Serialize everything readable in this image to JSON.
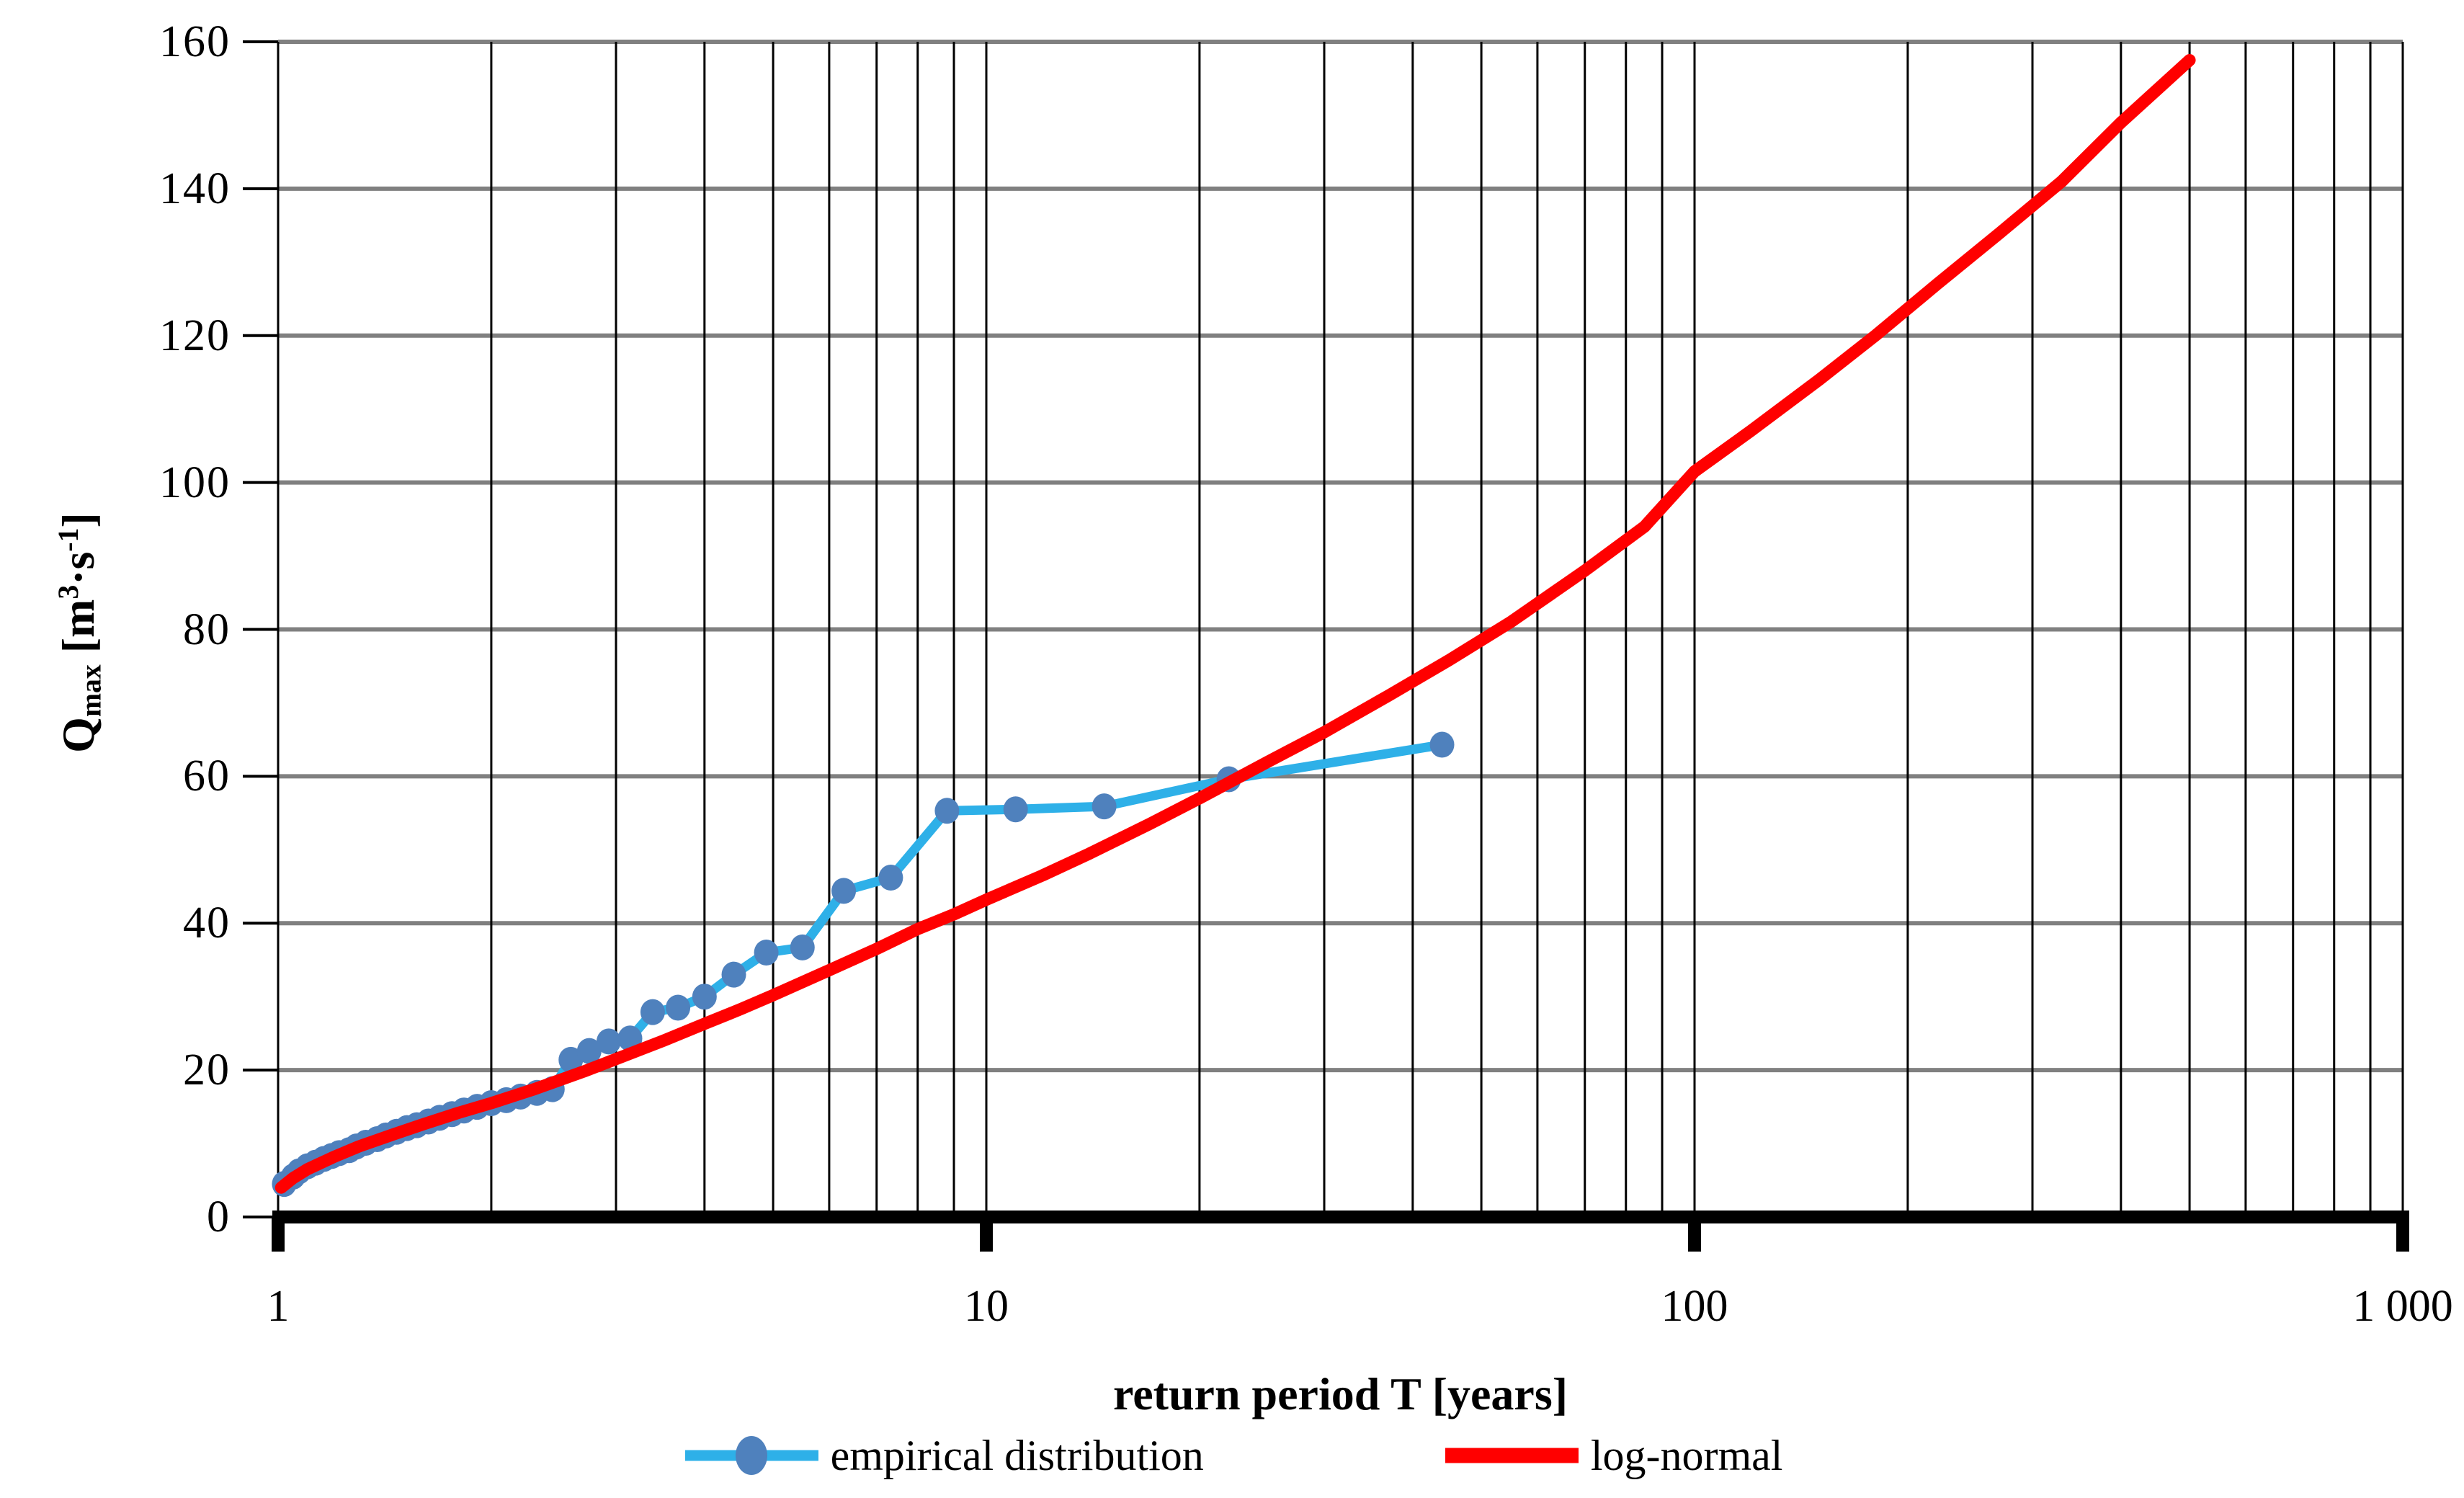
{
  "chart_data": {
    "type": "line",
    "title": "",
    "xlabel": "return period T [years]",
    "ylabel": "Qmax [m3*s-1]",
    "x_scale": "log",
    "xlim": [
      1,
      1000
    ],
    "ylim": [
      0,
      160
    ],
    "x_tick_values": [
      1,
      10,
      100,
      1000
    ],
    "x_tick_labels": [
      "1",
      "10",
      "100",
      "1 000"
    ],
    "y_tick_values": [
      0,
      20,
      40,
      60,
      80,
      100,
      120,
      140,
      160
    ],
    "y_tick_labels": [
      "0",
      "20",
      "40",
      "60",
      "80",
      "100",
      "120",
      "140",
      "160"
    ],
    "grid": {
      "horizontal_color": "#808080",
      "vertical_color": "#000000",
      "minor_log_gridlines": true
    },
    "legend_position": "bottom",
    "series": [
      {
        "name": "empirical distribution",
        "type": "line+marker",
        "line_color": "#2eb0e8",
        "marker_color": "#4f81bd",
        "points": [
          [
            1.02,
            4.5
          ],
          [
            1.05,
            5.5
          ],
          [
            1.07,
            6.2
          ],
          [
            1.1,
            6.9
          ],
          [
            1.13,
            7.4
          ],
          [
            1.16,
            7.9
          ],
          [
            1.19,
            8.3
          ],
          [
            1.22,
            8.7
          ],
          [
            1.26,
            9.1
          ],
          [
            1.29,
            9.6
          ],
          [
            1.33,
            10.1
          ],
          [
            1.38,
            10.6
          ],
          [
            1.42,
            11.1
          ],
          [
            1.47,
            11.6
          ],
          [
            1.52,
            12.1
          ],
          [
            1.57,
            12.5
          ],
          [
            1.63,
            13.0
          ],
          [
            1.69,
            13.5
          ],
          [
            1.76,
            14.0
          ],
          [
            1.83,
            14.5
          ],
          [
            1.91,
            15.0
          ],
          [
            2.0,
            15.5
          ],
          [
            2.1,
            15.9
          ],
          [
            2.2,
            16.4
          ],
          [
            2.32,
            16.9
          ],
          [
            2.44,
            17.4
          ],
          [
            2.59,
            21.4
          ],
          [
            2.75,
            22.6
          ],
          [
            2.93,
            23.9
          ],
          [
            3.14,
            24.3
          ],
          [
            3.38,
            27.9
          ],
          [
            3.67,
            28.5
          ],
          [
            4.0,
            30.0
          ],
          [
            4.4,
            33.0
          ],
          [
            4.89,
            36.0
          ],
          [
            5.5,
            36.7
          ],
          [
            6.29,
            44.4
          ],
          [
            7.33,
            46.2
          ],
          [
            8.8,
            55.3
          ],
          [
            11.0,
            55.5
          ],
          [
            14.67,
            55.9
          ],
          [
            22.0,
            59.6
          ],
          [
            44.0,
            64.3
          ]
        ]
      },
      {
        "name": "log-normal",
        "type": "line",
        "line_color": "#ff0000",
        "points": [
          [
            1.01,
            4.0
          ],
          [
            1.05,
            5.3
          ],
          [
            1.1,
            6.5
          ],
          [
            1.2,
            8.2
          ],
          [
            1.3,
            9.6
          ],
          [
            1.45,
            11.2
          ],
          [
            1.6,
            12.6
          ],
          [
            1.8,
            14.2
          ],
          [
            2.0,
            15.5
          ],
          [
            2.3,
            17.4
          ],
          [
            2.7,
            19.8
          ],
          [
            3.0,
            21.5
          ],
          [
            3.5,
            24.0
          ],
          [
            4.0,
            26.3
          ],
          [
            4.5,
            28.3
          ],
          [
            5.0,
            30.2
          ],
          [
            6.0,
            33.6
          ],
          [
            7.0,
            36.5
          ],
          [
            8.0,
            39.2
          ],
          [
            9.0,
            41.2
          ],
          [
            10,
            43.2
          ],
          [
            12,
            46.5
          ],
          [
            14,
            49.5
          ],
          [
            17,
            53.5
          ],
          [
            20,
            57.0
          ],
          [
            25,
            62.0
          ],
          [
            30,
            66.0
          ],
          [
            37,
            71.0
          ],
          [
            45,
            75.8
          ],
          [
            55,
            81.0
          ],
          [
            70,
            88.0
          ],
          [
            85,
            94.0
          ],
          [
            100,
            101.5
          ],
          [
            120,
            107.0
          ],
          [
            150,
            114.0
          ],
          [
            180,
            120.0
          ],
          [
            220,
            127.0
          ],
          [
            270,
            134.0
          ],
          [
            330,
            141.0
          ],
          [
            400,
            149.0
          ],
          [
            500,
            157.5
          ]
        ]
      }
    ]
  },
  "y_axis": {
    "title_q": "Q",
    "title_sub": "max",
    "title_unit_open": " [m",
    "title_sup1": "3",
    "title_unit_mid": "·s",
    "title_sup2": "-1",
    "title_unit_close": "]"
  },
  "x_axis": {
    "title": "return period T [years]"
  },
  "legend": {
    "items": [
      {
        "label": "empirical distribution",
        "line_color": "#2eb0e8",
        "marker": "circle",
        "marker_color": "#4f81bd"
      },
      {
        "label": "log-normal",
        "line_color": "#ff0000",
        "marker": "line",
        "marker_color": "#ff0000"
      }
    ]
  }
}
